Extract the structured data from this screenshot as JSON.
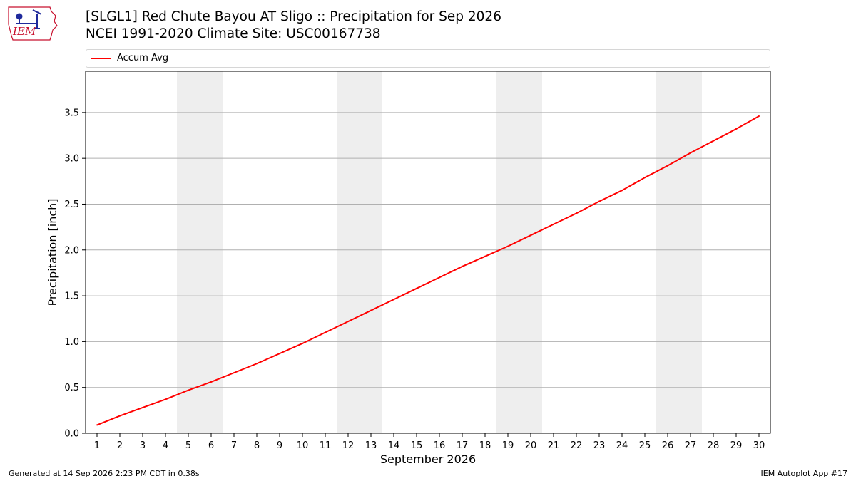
{
  "header": {
    "logo_text": "IEM",
    "title_line1": "[SLGL1] Red Chute Bayou  AT Sligo :: Precipitation for Sep 2026",
    "title_line2": "NCEI 1991-2020 Climate Site: USC00167738"
  },
  "footer": {
    "generated": "Generated at 14 Sep 2026 2:23 PM CDT in 0.38s",
    "app": "IEM Autoplot App #17"
  },
  "chart_data": {
    "type": "line",
    "title": "[SLGL1] Red Chute Bayou  AT Sligo :: Precipitation for Sep 2026",
    "subtitle": "NCEI 1991-2020 Climate Site: USC00167738",
    "xlabel": "September 2026",
    "ylabel": "Precipitation [inch]",
    "x": [
      1,
      2,
      3,
      4,
      5,
      6,
      7,
      8,
      9,
      10,
      11,
      12,
      13,
      14,
      15,
      16,
      17,
      18,
      19,
      20,
      21,
      22,
      23,
      24,
      25,
      26,
      27,
      28,
      29,
      30
    ],
    "xticks": [
      "1",
      "2",
      "3",
      "4",
      "5",
      "6",
      "7",
      "8",
      "9",
      "10",
      "11",
      "12",
      "13",
      "14",
      "15",
      "16",
      "17",
      "18",
      "19",
      "20",
      "21",
      "22",
      "23",
      "24",
      "25",
      "26",
      "27",
      "28",
      "29",
      "30"
    ],
    "xlim": [
      0.5,
      30.5
    ],
    "ylim": [
      0,
      3.95
    ],
    "yticks": [
      "0.0",
      "0.5",
      "1.0",
      "1.5",
      "2.0",
      "2.5",
      "3.0",
      "3.5"
    ],
    "grid": "horizontal",
    "weekend_shading": [
      [
        4.5,
        6.5
      ],
      [
        11.5,
        13.5
      ],
      [
        18.5,
        20.5
      ],
      [
        25.5,
        27.5
      ]
    ],
    "legend_position": "top",
    "series": [
      {
        "name": "Accum Avg",
        "color": "#ff0000",
        "values": [
          0.09,
          0.19,
          0.28,
          0.37,
          0.47,
          0.56,
          0.66,
          0.76,
          0.87,
          0.98,
          1.1,
          1.22,
          1.34,
          1.46,
          1.58,
          1.7,
          1.82,
          1.93,
          2.04,
          2.16,
          2.28,
          2.4,
          2.53,
          2.65,
          2.79,
          2.92,
          3.06,
          3.19,
          3.32,
          3.46
        ]
      }
    ]
  },
  "colors": {
    "line": "#ff0000",
    "shade": "#eeeeee",
    "grid": "#b0b0b0",
    "logo_red": "#c8102e",
    "logo_blue": "#1f2a9c"
  }
}
